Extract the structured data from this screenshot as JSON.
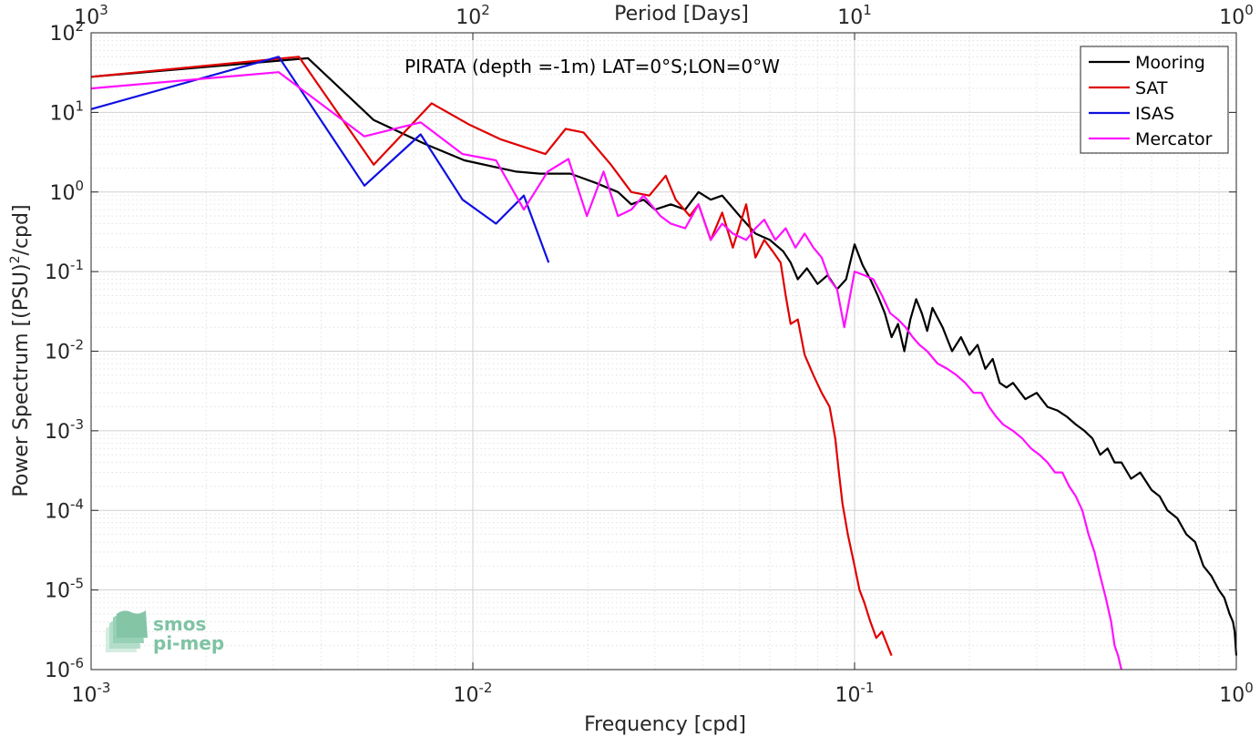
{
  "chart_data": {
    "type": "line",
    "title": "PIRATA (depth =-1m) LAT=0°S;LON=0°W",
    "xlabel": "Frequency [cpd]",
    "x2label": "Period [Days]",
    "ylabel_main": "Power Spectrum [(PSU)",
    "ylabel_sup": "2",
    "ylabel_end": "/cpd]",
    "x_scale": "log",
    "y_scale": "log",
    "xlim": [
      0.001,
      1
    ],
    "ylim": [
      1e-06,
      100
    ],
    "grid": true,
    "legend_placement": "top-right",
    "x_ticks": [
      {
        "base": "10",
        "exp": "-3"
      },
      {
        "base": "10",
        "exp": "-2"
      },
      {
        "base": "10",
        "exp": "-1"
      },
      {
        "base": "10",
        "exp": "0"
      }
    ],
    "x2_ticks": [
      {
        "base": "10",
        "exp": "3"
      },
      {
        "base": "10",
        "exp": "2"
      },
      {
        "base": "10",
        "exp": "1"
      },
      {
        "base": "10",
        "exp": "0"
      }
    ],
    "y_ticks": [
      {
        "base": "10",
        "exp": "-6"
      },
      {
        "base": "10",
        "exp": "-5"
      },
      {
        "base": "10",
        "exp": "-4"
      },
      {
        "base": "10",
        "exp": "-3"
      },
      {
        "base": "10",
        "exp": "-2"
      },
      {
        "base": "10",
        "exp": "-1"
      },
      {
        "base": "10",
        "exp": "0"
      },
      {
        "base": "10",
        "exp": "1"
      },
      {
        "base": "10",
        "exp": "2"
      }
    ],
    "series": [
      {
        "name": "Mooring",
        "color": "#000000",
        "x": [
          0.001,
          0.0037,
          0.0055,
          0.0075,
          0.0095,
          0.013,
          0.015,
          0.018,
          0.021,
          0.024,
          0.026,
          0.028,
          0.03,
          0.033,
          0.036,
          0.039,
          0.042,
          0.045,
          0.05,
          0.055,
          0.06,
          0.065,
          0.068,
          0.071,
          0.075,
          0.08,
          0.085,
          0.09,
          0.095,
          0.1,
          0.105,
          0.11,
          0.115,
          0.12,
          0.125,
          0.13,
          0.135,
          0.14,
          0.145,
          0.15,
          0.155,
          0.16,
          0.17,
          0.18,
          0.19,
          0.2,
          0.21,
          0.22,
          0.23,
          0.24,
          0.25,
          0.26,
          0.28,
          0.3,
          0.32,
          0.34,
          0.36,
          0.38,
          0.4,
          0.42,
          0.44,
          0.46,
          0.48,
          0.5,
          0.53,
          0.56,
          0.6,
          0.63,
          0.66,
          0.7,
          0.74,
          0.78,
          0.82,
          0.86,
          0.9,
          0.93,
          0.96,
          0.98,
          0.99,
          1.0
        ],
        "y": [
          28,
          48,
          8,
          4,
          2.5,
          1.8,
          1.7,
          1.7,
          1.3,
          1.0,
          0.7,
          0.8,
          0.6,
          0.7,
          0.6,
          1.0,
          0.8,
          0.9,
          0.5,
          0.3,
          0.25,
          0.18,
          0.13,
          0.08,
          0.11,
          0.07,
          0.09,
          0.06,
          0.08,
          0.22,
          0.12,
          0.08,
          0.05,
          0.03,
          0.015,
          0.022,
          0.01,
          0.025,
          0.045,
          0.03,
          0.018,
          0.035,
          0.02,
          0.01,
          0.015,
          0.009,
          0.012,
          0.006,
          0.008,
          0.004,
          0.0035,
          0.004,
          0.0025,
          0.003,
          0.002,
          0.0018,
          0.0015,
          0.0012,
          0.001,
          0.0008,
          0.0005,
          0.0006,
          0.0004,
          0.0004,
          0.00025,
          0.0003,
          0.00018,
          0.00015,
          0.0001,
          8e-05,
          5e-05,
          4e-05,
          2e-05,
          1.5e-05,
          1e-05,
          8e-06,
          5e-06,
          4e-06,
          3e-06,
          1.5e-06
        ]
      },
      {
        "name": "SAT",
        "color": "#e00000",
        "x": [
          0.001,
          0.0035,
          0.0055,
          0.0078,
          0.0098,
          0.0118,
          0.0155,
          0.0175,
          0.0195,
          0.023,
          0.026,
          0.029,
          0.032,
          0.034,
          0.037,
          0.039,
          0.042,
          0.045,
          0.048,
          0.052,
          0.055,
          0.058,
          0.061,
          0.064,
          0.066,
          0.068,
          0.071,
          0.074,
          0.078,
          0.082,
          0.086,
          0.089,
          0.091,
          0.093,
          0.096,
          0.1,
          0.103,
          0.106,
          0.11,
          0.114,
          0.118,
          0.122,
          0.125
        ],
        "y": [
          28,
          50,
          2.2,
          13,
          7,
          4.6,
          3,
          6.2,
          5.6,
          2.2,
          1.0,
          0.9,
          1.6,
          0.8,
          0.5,
          0.7,
          0.25,
          0.55,
          0.2,
          0.7,
          0.15,
          0.25,
          0.18,
          0.13,
          0.05,
          0.022,
          0.025,
          0.009,
          0.005,
          0.003,
          0.002,
          0.0008,
          0.0003,
          0.00012,
          5e-05,
          2e-05,
          1e-05,
          7e-06,
          4e-06,
          2.5e-06,
          3e-06,
          2e-06,
          1.5e-06
        ]
      },
      {
        "name": "ISAS",
        "color": "#1010e0",
        "x": [
          0.001,
          0.0031,
          0.0052,
          0.0073,
          0.0094,
          0.0115,
          0.0136,
          0.0158
        ],
        "y": [
          11,
          50,
          1.2,
          5.3,
          0.8,
          0.4,
          0.9,
          0.13
        ]
      },
      {
        "name": "Mercator",
        "color": "#ff10ff",
        "x": [
          0.001,
          0.0031,
          0.0052,
          0.0073,
          0.0094,
          0.0115,
          0.0136,
          0.0157,
          0.0178,
          0.0199,
          0.022,
          0.024,
          0.026,
          0.028,
          0.031,
          0.033,
          0.036,
          0.039,
          0.042,
          0.045,
          0.048,
          0.052,
          0.055,
          0.058,
          0.062,
          0.066,
          0.07,
          0.074,
          0.078,
          0.082,
          0.086,
          0.09,
          0.094,
          0.1,
          0.106,
          0.112,
          0.118,
          0.124,
          0.13,
          0.136,
          0.142,
          0.148,
          0.155,
          0.165,
          0.175,
          0.185,
          0.195,
          0.205,
          0.215,
          0.225,
          0.235,
          0.245,
          0.26,
          0.275,
          0.29,
          0.305,
          0.32,
          0.335,
          0.35,
          0.365,
          0.38,
          0.395,
          0.41,
          0.425,
          0.44,
          0.455,
          0.47,
          0.48,
          0.49,
          0.5
        ],
        "y": [
          20,
          32,
          5,
          7.5,
          3,
          2.5,
          0.6,
          1.8,
          2.6,
          0.5,
          1.8,
          0.5,
          0.6,
          0.9,
          0.5,
          0.4,
          0.35,
          0.7,
          0.25,
          0.4,
          0.3,
          0.25,
          0.35,
          0.45,
          0.25,
          0.35,
          0.2,
          0.3,
          0.2,
          0.15,
          0.08,
          0.06,
          0.02,
          0.1,
          0.09,
          0.08,
          0.05,
          0.03,
          0.025,
          0.02,
          0.015,
          0.012,
          0.01,
          0.007,
          0.006,
          0.005,
          0.004,
          0.003,
          0.003,
          0.002,
          0.0015,
          0.0012,
          0.001,
          0.0008,
          0.0006,
          0.0005,
          0.0004,
          0.0003,
          0.0003,
          0.0002,
          0.00015,
          0.0001,
          5e-05,
          3e-05,
          1.5e-05,
          8e-06,
          4e-06,
          2e-06,
          1.5e-06,
          1e-06
        ]
      }
    ]
  },
  "logo": {
    "line1": "smos",
    "line2": "pi-mep"
  }
}
